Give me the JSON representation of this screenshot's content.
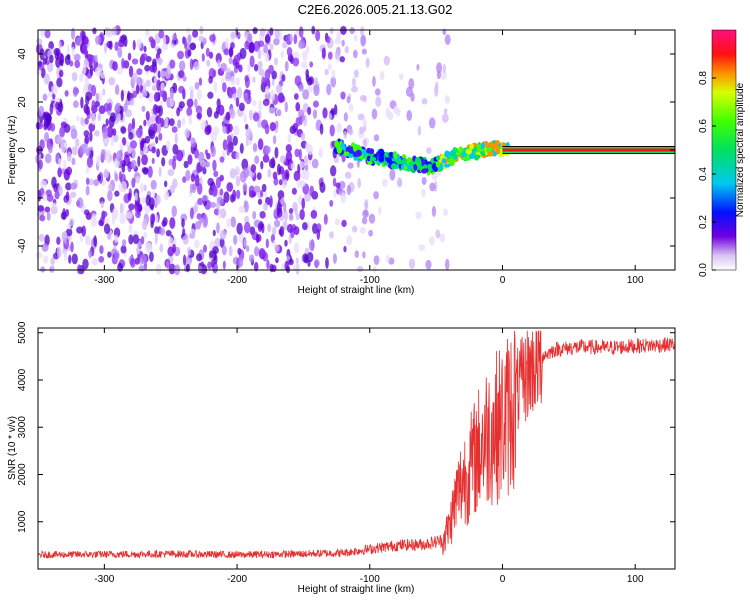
{
  "title": "C2E6.2026.005.21.13.G02",
  "chart_data": [
    {
      "type": "heatmap",
      "name": "spectrogram",
      "xlabel": "Height of straight line (km)",
      "ylabel": "Frequency (Hz)",
      "xlim": [
        -350,
        130
      ],
      "ylim": [
        -50,
        50
      ],
      "xticks": [
        -300,
        -200,
        -100,
        0,
        100
      ],
      "xtick_labels": [
        "-300",
        "-200",
        "-100",
        "0",
        "100"
      ],
      "yticks": [
        -40,
        -20,
        0,
        20,
        40
      ],
      "ytick_labels": [
        "-40",
        "-20",
        "0",
        "20",
        "40"
      ],
      "noise_region_x": [
        -350,
        -40
      ],
      "signal_track": {
        "x": [
          -125,
          -115,
          -105,
          -95,
          -85,
          -75,
          -65,
          -55,
          -45,
          -35,
          -25,
          -15,
          -5,
          0,
          10,
          130
        ],
        "freq": [
          2,
          0,
          -2,
          -3,
          -4,
          -5,
          -6,
          -7,
          -5,
          -2,
          -1,
          0,
          1,
          1,
          0,
          0
        ]
      },
      "colorbar": {
        "label": "Normalized spectral amplitude",
        "range": [
          0,
          1
        ],
        "ticks": [
          0.0,
          0.2,
          0.4,
          0.6,
          0.8
        ],
        "tick_labels": [
          "0.0",
          "0.2",
          "0.4",
          "0.6",
          "0.8"
        ]
      }
    },
    {
      "type": "line",
      "name": "snr",
      "xlabel": "Height of straight line (km)",
      "ylabel": "SNR (10 * v/v)",
      "xlim": [
        -350,
        130
      ],
      "ylim": [
        0,
        5100
      ],
      "xticks": [
        -300,
        -200,
        -100,
        0,
        100
      ],
      "xtick_labels": [
        "-300",
        "-200",
        "-100",
        "0",
        "100"
      ],
      "yticks": [
        1000,
        2000,
        3000,
        4000,
        5000
      ],
      "ytick_labels": [
        "1000",
        "2000",
        "3000",
        "4000",
        "5000"
      ],
      "color": "#e63030",
      "series": [
        {
          "name": "SNR",
          "x": [
            -350,
            -300,
            -250,
            -200,
            -150,
            -120,
            -100,
            -80,
            -60,
            -45,
            -40,
            -35,
            -30,
            -25,
            -20,
            -15,
            -10,
            -5,
            0,
            5,
            10,
            20,
            30,
            40,
            60,
            80,
            100,
            130
          ],
          "y": [
            300,
            310,
            320,
            300,
            320,
            340,
            420,
            500,
            520,
            600,
            900,
            1500,
            1900,
            2100,
            2400,
            2700,
            2900,
            3000,
            3100,
            3300,
            3700,
            4200,
            4500,
            4650,
            4700,
            4680,
            4720,
            4750
          ]
        }
      ]
    }
  ]
}
